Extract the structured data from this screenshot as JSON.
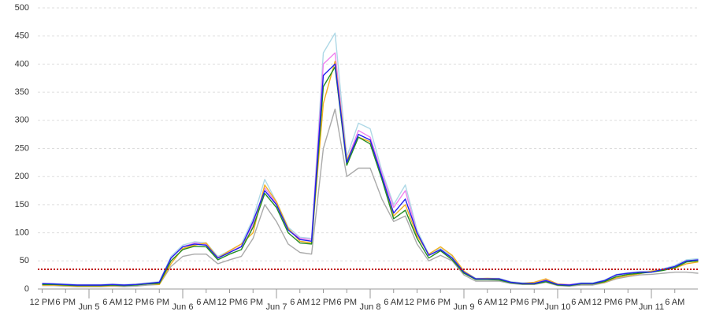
{
  "chart_data": {
    "type": "line",
    "categories": [
      "12 PM",
      null,
      "6 PM",
      null,
      "Jun 5",
      null,
      "6 AM",
      null,
      "12 PM",
      null,
      "6 PM",
      null,
      "Jun 6",
      null,
      "6 AM",
      null,
      "12 PM",
      null,
      "6 PM",
      null,
      "Jun 7",
      null,
      "6 AM",
      null,
      "12 PM",
      null,
      "6 PM",
      null,
      "Jun 8",
      null,
      "6 AM",
      null,
      "12 PM",
      null,
      "6 PM",
      null,
      "Jun 9",
      null,
      "6 AM",
      null,
      "12 PM",
      null,
      "6 PM",
      null,
      "Jun 10",
      null,
      "6 AM",
      null,
      "12 PM",
      null,
      "6 PM",
      null,
      "Jun 11",
      null,
      "6 AM",
      null,
      null
    ],
    "series": [
      {
        "color": "#aaaaaa",
        "values": [
          6,
          6,
          5,
          4,
          4,
          4,
          5,
          4,
          5,
          7,
          8,
          40,
          58,
          62,
          62,
          45,
          52,
          58,
          90,
          150,
          120,
          80,
          65,
          62,
          250,
          320,
          200,
          215,
          215,
          160,
          120,
          130,
          80,
          50,
          60,
          50,
          25,
          14,
          14,
          14,
          10,
          8,
          8,
          12,
          6,
          5,
          7,
          7,
          11,
          18,
          22,
          25,
          26,
          28,
          30,
          30,
          28
        ]
      },
      {
        "color": "#add8e6",
        "values": [
          10,
          10,
          9,
          8,
          8,
          8,
          9,
          8,
          9,
          11,
          13,
          58,
          78,
          84,
          82,
          58,
          68,
          80,
          125,
          195,
          155,
          110,
          92,
          90,
          420,
          455,
          235,
          295,
          285,
          210,
          150,
          185,
          105,
          62,
          72,
          58,
          32,
          19,
          19,
          19,
          13,
          11,
          11,
          16,
          9,
          8,
          11,
          11,
          16,
          26,
          29,
          31,
          32,
          36,
          42,
          52,
          54
        ]
      },
      {
        "color": "#ee82ee",
        "values": [
          9,
          9,
          8,
          7,
          7,
          7,
          8,
          7,
          8,
          10,
          12,
          55,
          75,
          82,
          80,
          56,
          66,
          76,
          115,
          180,
          152,
          106,
          90,
          88,
          400,
          420,
          228,
          282,
          270,
          205,
          145,
          175,
          100,
          60,
          70,
          55,
          30,
          18,
          18,
          18,
          12,
          10,
          10,
          16,
          9,
          8,
          10,
          10,
          15,
          25,
          28,
          30,
          31,
          35,
          40,
          50,
          52
        ]
      },
      {
        "color": "#f0b020",
        "values": [
          7,
          7,
          6,
          5,
          5,
          5,
          6,
          6,
          8,
          10,
          8,
          45,
          72,
          78,
          82,
          55,
          68,
          80,
          100,
          185,
          155,
          108,
          85,
          82,
          330,
          405,
          230,
          270,
          262,
          198,
          130,
          150,
          95,
          62,
          75,
          60,
          32,
          18,
          19,
          18,
          12,
          10,
          12,
          18,
          9,
          7,
          9,
          9,
          12,
          20,
          24,
          27,
          32,
          34,
          37,
          45,
          48
        ]
      },
      {
        "color": "#228b22",
        "values": [
          8,
          8,
          7,
          6,
          6,
          6,
          7,
          6,
          7,
          9,
          10,
          50,
          70,
          76,
          75,
          52,
          62,
          70,
          110,
          170,
          145,
          100,
          82,
          80,
          360,
          395,
          220,
          270,
          258,
          195,
          125,
          140,
          90,
          55,
          68,
          52,
          28,
          17,
          17,
          16,
          11,
          9,
          9,
          13,
          7,
          6,
          9,
          9,
          13,
          22,
          26,
          28,
          30,
          33,
          38,
          48,
          50
        ]
      },
      {
        "color": "#2020ee",
        "values": [
          10,
          9,
          8,
          7,
          7,
          7,
          8,
          7,
          8,
          10,
          12,
          55,
          75,
          80,
          78,
          55,
          65,
          75,
          120,
          175,
          150,
          105,
          88,
          85,
          380,
          400,
          225,
          275,
          265,
          200,
          135,
          160,
          100,
          60,
          70,
          55,
          30,
          18,
          18,
          18,
          12,
          10,
          10,
          15,
          8,
          7,
          10,
          10,
          15,
          25,
          28,
          30,
          30,
          35,
          40,
          50,
          52
        ]
      }
    ],
    "reference_line": {
      "value": 35,
      "color": "#c00000"
    },
    "ylim": [
      0,
      500
    ],
    "yticks": [
      0,
      50,
      100,
      150,
      200,
      250,
      300,
      350,
      400,
      450,
      500
    ],
    "grid": true
  }
}
